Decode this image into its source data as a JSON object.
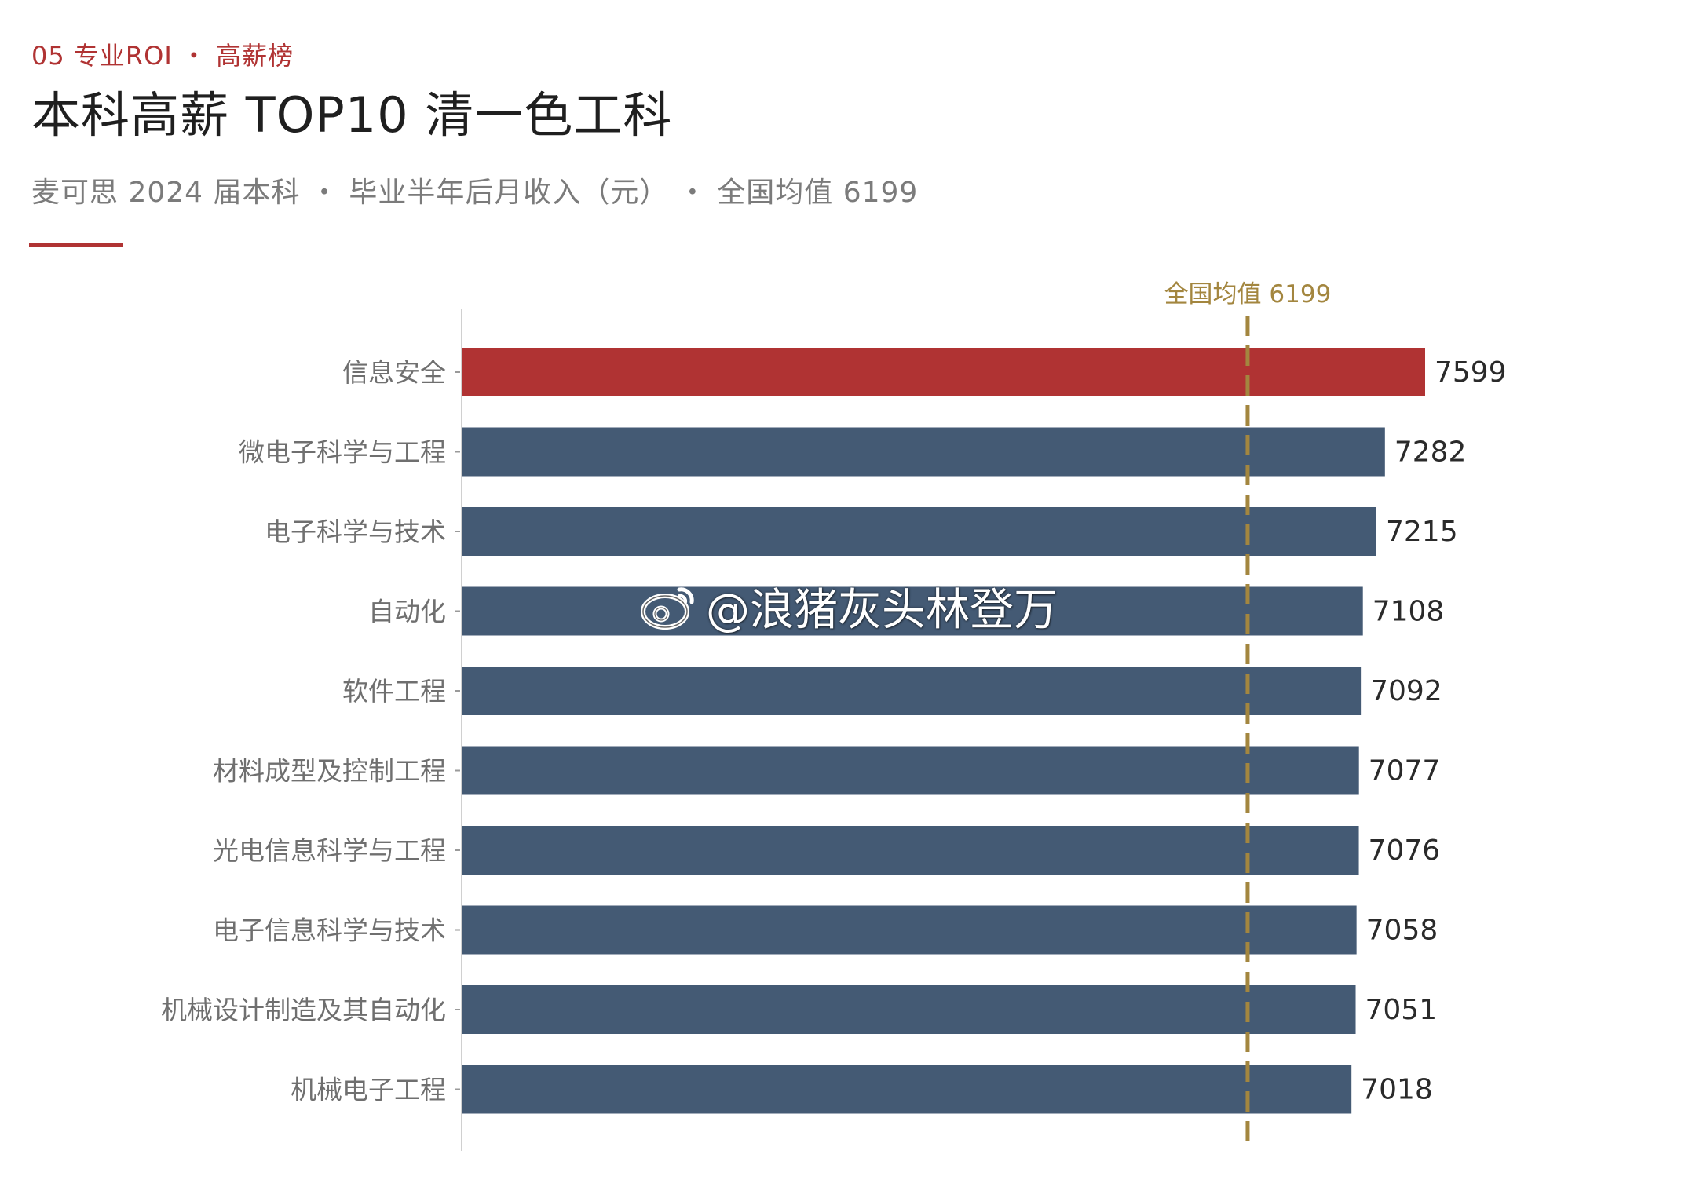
{
  "header": {
    "kicker": "05 专业ROI ・ 高薪榜",
    "title": "本科高薪 TOP10 清一色工科",
    "subtitle": "麦可思 2024 届本科 ・ 毕业半年后月收入（元） ・ 全国均值 6199"
  },
  "watermark": {
    "text": "@浪猪灰头林登万",
    "icon": "weibo-icon"
  },
  "colors": {
    "highlight_bar": "#b03333",
    "bar": "#445a74",
    "reference_line": "#a3863f",
    "accent": "#b03333"
  },
  "chart_data": {
    "type": "bar",
    "orientation": "horizontal",
    "categories": [
      "信息安全",
      "微电子科学与工程",
      "电子科学与技术",
      "自动化",
      "软件工程",
      "材料成型及控制工程",
      "光电信息科学与工程",
      "电子信息科学与技术",
      "机械设计制造及其自动化",
      "机械电子工程"
    ],
    "values": [
      7599,
      7282,
      7215,
      7108,
      7092,
      7077,
      7076,
      7058,
      7051,
      7018
    ],
    "value_labels": [
      "7599",
      "7282",
      "7215",
      "7108",
      "7092",
      "7077",
      "7076",
      "7058",
      "7051",
      "7018"
    ],
    "highlight_index": 0,
    "xlim": [
      0,
      7599
    ],
    "reference_line": {
      "value": 6199,
      "label": "全国均值 6199",
      "style": "dashed"
    },
    "grid": false,
    "legend": "none"
  }
}
